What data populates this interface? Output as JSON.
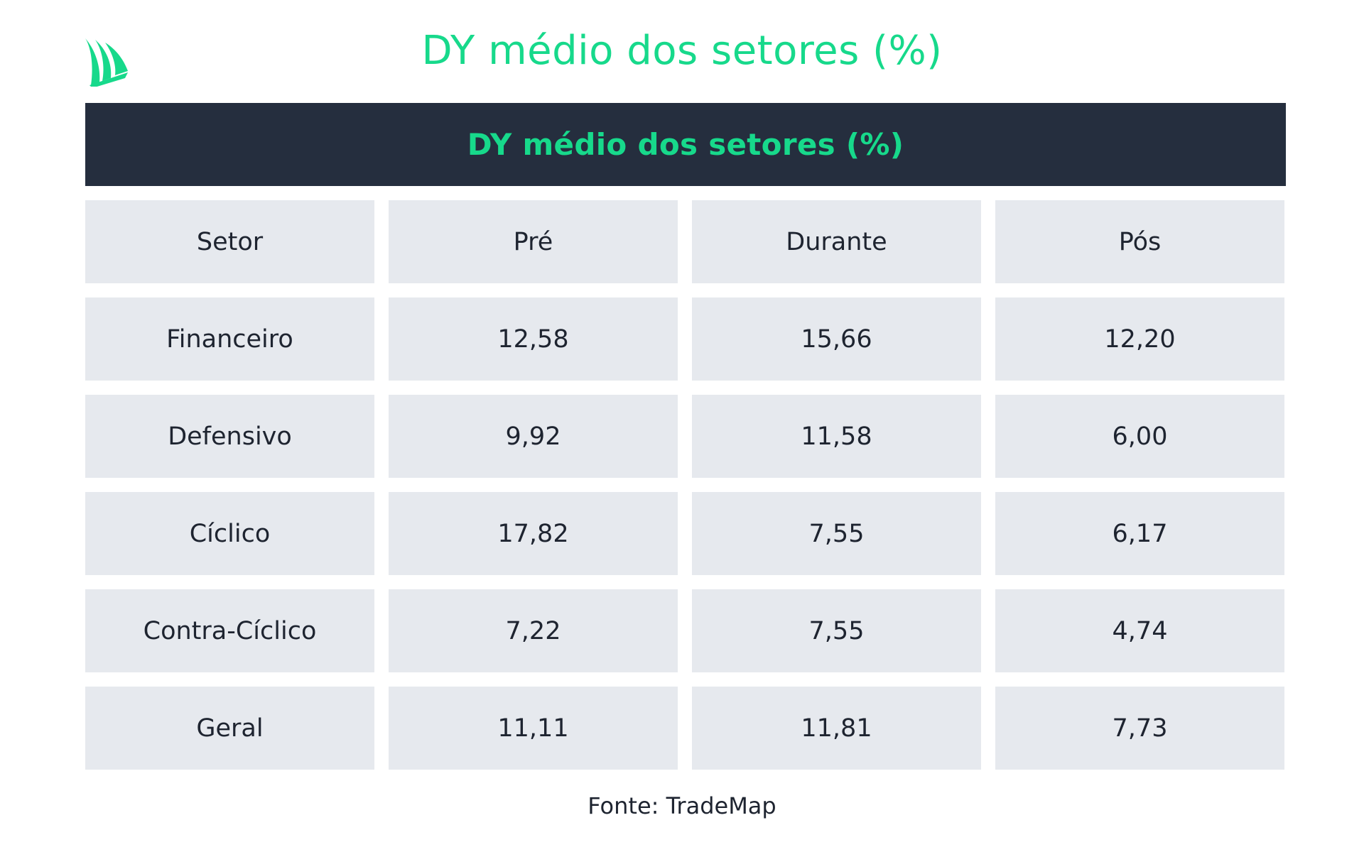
{
  "page": {
    "title": "DY médio dos setores (%)",
    "logo_icon": "sail-logo-icon",
    "source": "Fonte: TradeMap"
  },
  "colors": {
    "accent": "#17d98b",
    "header_bg": "#252e3e",
    "cell_bg": "#e6e9ee",
    "text": "#1e2430"
  },
  "table": {
    "title": "DY médio dos setores (%)",
    "columns": [
      "Setor",
      "Pré",
      "Durante",
      "Pós"
    ],
    "rows": [
      [
        "Financeiro",
        "12,58",
        "15,66",
        "12,20"
      ],
      [
        "Defensivo",
        "9,92",
        "11,58",
        "6,00"
      ],
      [
        "Cíclico",
        "17,82",
        "7,55",
        "6,17"
      ],
      [
        "Contra-Cíclico",
        "7,22",
        "7,55",
        "4,74"
      ],
      [
        "Geral",
        "11,11",
        "11,81",
        "7,73"
      ]
    ]
  }
}
